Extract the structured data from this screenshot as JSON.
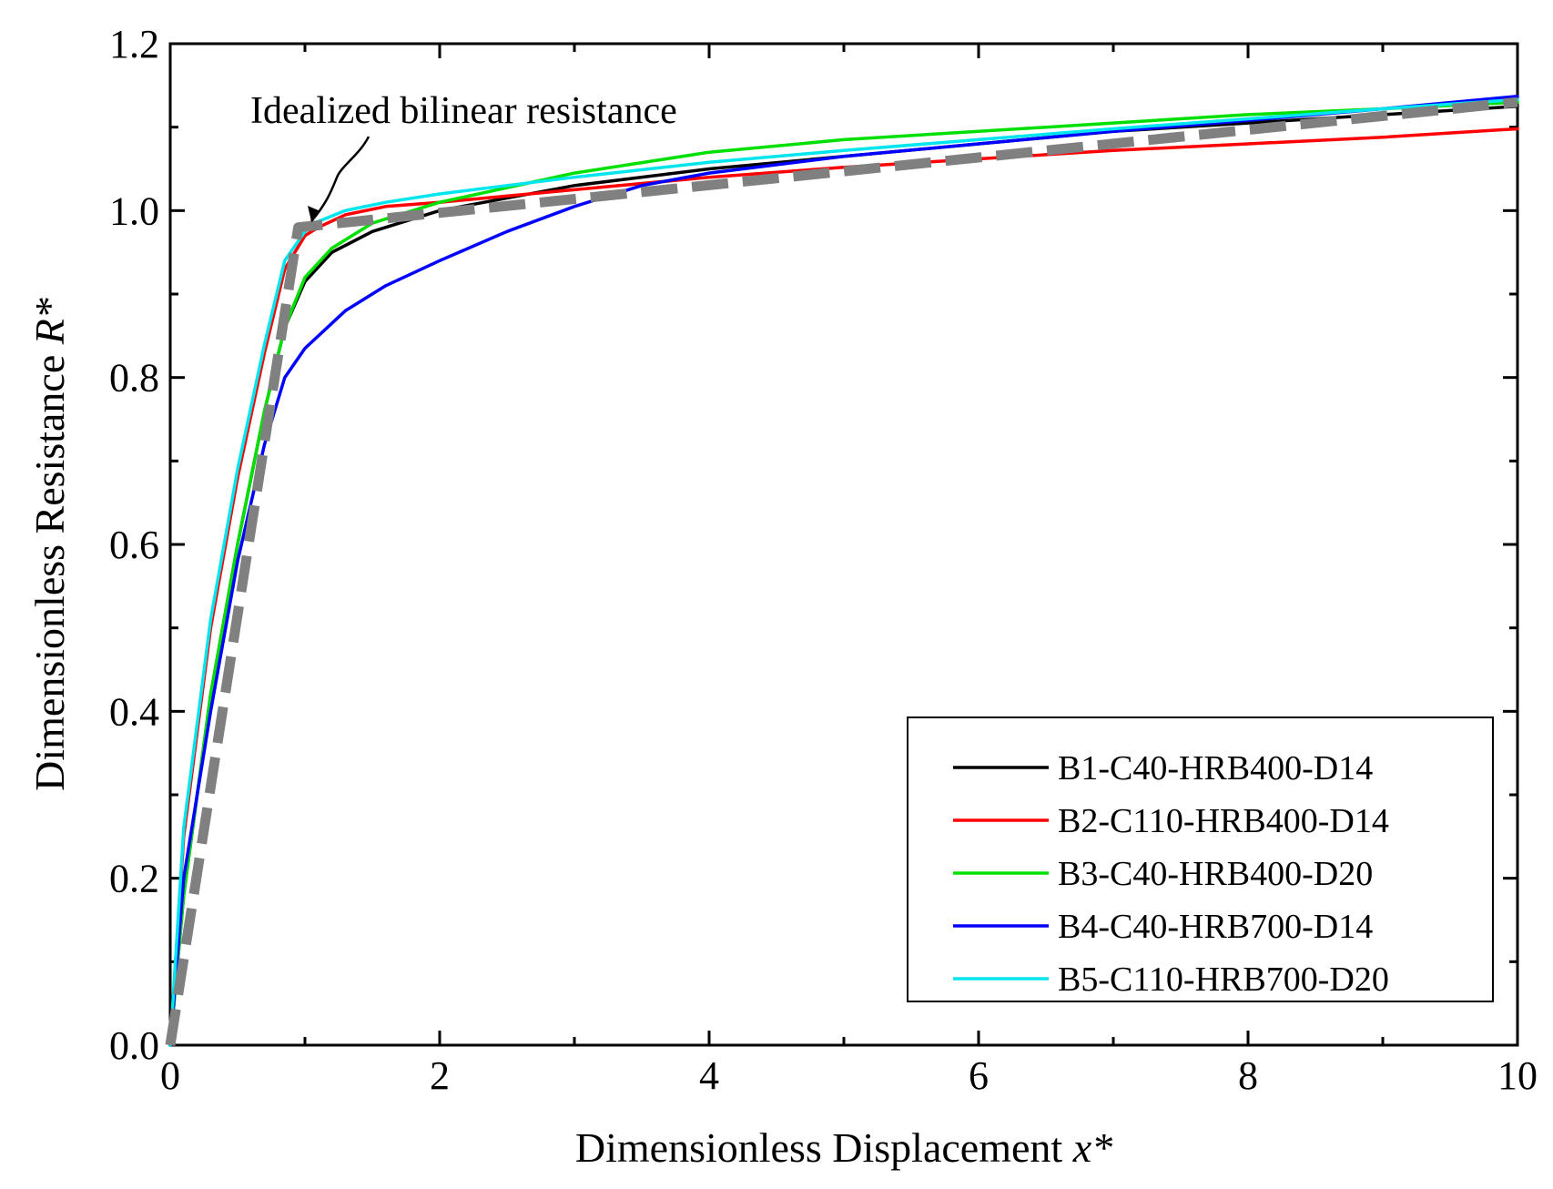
{
  "chart_data": {
    "type": "line",
    "title": "",
    "xlabel": "Dimensionless Displacement",
    "xlabel_var": "x*",
    "ylabel": "Dimensionless Resistance",
    "ylabel_var": "R*",
    "xlim": [
      0,
      10
    ],
    "ylim": [
      0,
      1.2
    ],
    "x_ticks": [
      0,
      2,
      4,
      6,
      8,
      10
    ],
    "x_tick_labels": [
      "0",
      "2",
      "4",
      "6",
      "8",
      "10"
    ],
    "y_ticks": [
      0,
      0.2,
      0.4,
      0.6,
      0.8,
      1.0,
      1.2
    ],
    "y_tick_labels": [
      "0.0",
      "0.2",
      "0.4",
      "0.6",
      "0.8",
      "1.0",
      "1.2"
    ],
    "grid": false,
    "legend_position": "bottom-right",
    "annotation": {
      "text": "Idealized bilinear resistance",
      "target": [
        1.0,
        0.98
      ]
    },
    "series": [
      {
        "name": "B1-C40-HRB400-D14",
        "color": "#000000",
        "x": [
          0,
          0.1,
          0.3,
          0.5,
          0.7,
          0.85,
          1.0,
          1.2,
          1.5,
          2.0,
          3.0,
          4.0,
          5.0,
          6.0,
          7.0,
          8.0,
          9.0,
          10.0
        ],
        "y": [
          0,
          0.18,
          0.42,
          0.6,
          0.76,
          0.86,
          0.915,
          0.95,
          0.975,
          1.0,
          1.03,
          1.05,
          1.065,
          1.08,
          1.095,
          1.105,
          1.115,
          1.125
        ]
      },
      {
        "name": "B2-C110-HRB400-D14",
        "color": "#ff0000",
        "x": [
          0,
          0.1,
          0.3,
          0.5,
          0.7,
          0.85,
          1.0,
          1.1,
          1.3,
          1.6,
          2.0,
          3.0,
          4.0,
          5.0,
          6.0,
          7.0,
          8.0,
          9.0,
          10.0
        ],
        "y": [
          0,
          0.25,
          0.5,
          0.68,
          0.83,
          0.93,
          0.97,
          0.98,
          0.995,
          1.005,
          1.01,
          1.025,
          1.04,
          1.052,
          1.062,
          1.072,
          1.08,
          1.088,
          1.098
        ]
      },
      {
        "name": "B3-C40-HRB400-D20",
        "color": "#00e000",
        "x": [
          0,
          0.1,
          0.3,
          0.5,
          0.7,
          0.85,
          1.0,
          1.2,
          1.5,
          2.0,
          3.0,
          4.0,
          5.0,
          6.0,
          7.0,
          8.0,
          9.0,
          10.0
        ],
        "y": [
          0,
          0.18,
          0.42,
          0.6,
          0.76,
          0.86,
          0.92,
          0.955,
          0.985,
          1.01,
          1.045,
          1.07,
          1.085,
          1.095,
          1.105,
          1.115,
          1.122,
          1.13
        ]
      },
      {
        "name": "B4-C40-HRB700-D14",
        "color": "#0000ff",
        "x": [
          0,
          0.1,
          0.3,
          0.5,
          0.7,
          0.85,
          1.0,
          1.3,
          1.6,
          2.0,
          2.5,
          3.0,
          3.5,
          4.0,
          5.0,
          6.0,
          7.0,
          8.0,
          9.0,
          10.0
        ],
        "y": [
          0,
          0.2,
          0.4,
          0.58,
          0.72,
          0.8,
          0.835,
          0.88,
          0.91,
          0.94,
          0.975,
          1.005,
          1.03,
          1.045,
          1.065,
          1.08,
          1.095,
          1.108,
          1.122,
          1.137
        ]
      },
      {
        "name": "B5-C110-HRB700-D20",
        "color": "#00e5ee",
        "x": [
          0,
          0.1,
          0.3,
          0.5,
          0.7,
          0.85,
          1.0,
          1.1,
          1.3,
          1.6,
          2.0,
          3.0,
          4.0,
          5.0,
          6.0,
          7.0,
          8.0,
          9.0,
          10.0
        ],
        "y": [
          0,
          0.26,
          0.51,
          0.69,
          0.84,
          0.94,
          0.975,
          0.987,
          1.0,
          1.01,
          1.02,
          1.04,
          1.058,
          1.072,
          1.085,
          1.098,
          1.11,
          1.122,
          1.133
        ]
      },
      {
        "name": "Idealized bilinear",
        "color": "#808080",
        "dashed": true,
        "in_legend": false,
        "x": [
          0,
          0.95,
          10
        ],
        "y": [
          0,
          0.98,
          1.13
        ]
      }
    ]
  }
}
